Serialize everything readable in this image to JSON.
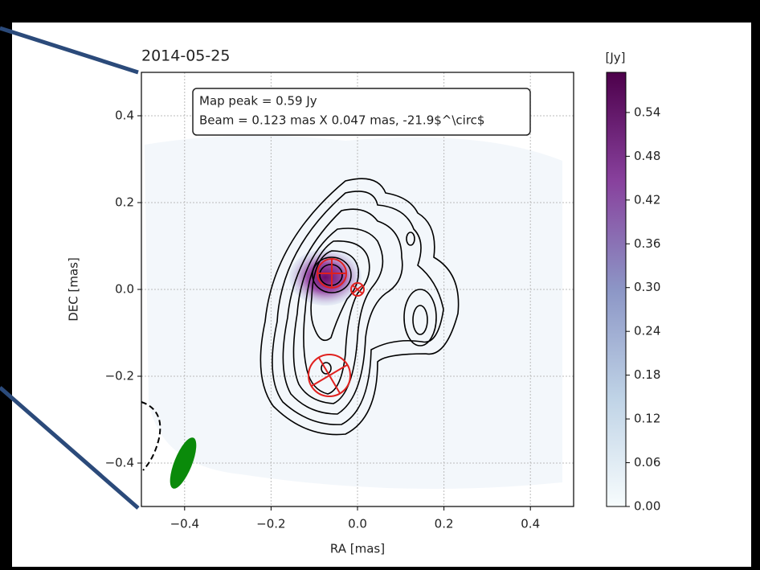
{
  "chart_data": {
    "type": "contour",
    "title": "2014-05-25",
    "annotations": [
      "Map peak = 0.59 Jy",
      "Beam = 0.123 mas X 0.047 mas, -21.9$^\\circ$"
    ],
    "xlabel": "RA [mas]",
    "ylabel": "DEC [mas]",
    "xlim": [
      -0.5,
      0.5
    ],
    "ylim": [
      -0.5,
      0.5
    ],
    "xticks": [
      {
        "value": -0.4,
        "label": "−0.4"
      },
      {
        "value": -0.2,
        "label": "−0.2"
      },
      {
        "value": 0,
        "label": "0.0"
      },
      0.2,
      0.4
    ],
    "yticks": [
      {
        "value": -0.4,
        "label": "−0.4"
      },
      {
        "value": -0.2,
        "label": "−0.2"
      },
      {
        "value": 0,
        "label": "0.0"
      },
      0.2,
      0.4
    ],
    "grid": true,
    "colorbar": {
      "label": "[Jy]",
      "lim": [
        0,
        0.595
      ],
      "colors": [
        "#f7fcfd",
        "#bfd3e6",
        "#8c96c6",
        "#88419d",
        "#4d004b"
      ],
      "ticks": [
        {
          "value": 0,
          "label": "0.00"
        },
        0.06,
        0.12,
        0.18,
        0.24,
        {
          "value": 0.3,
          "label": "0.30"
        },
        0.36,
        0.42,
        0.48,
        0.54
      ]
    }
  }
}
